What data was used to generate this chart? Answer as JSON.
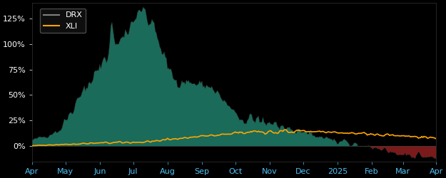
{
  "background_color": "#000000",
  "plot_bg_color": "#000000",
  "drx_fill_color_pos": "#1a6b5a",
  "drx_fill_color_neg": "#7a1a1a",
  "drx_line_color": "#3a3a3a",
  "xli_line_color": "#FFA500",
  "legend_labels": [
    "DRX",
    "XLI"
  ],
  "legend_line_colors": [
    "#808080",
    "#FFA500"
  ],
  "tick_label_color": "#ffffff",
  "x_tick_label_color": "#4fc3f7",
  "yticks": [
    0,
    25,
    50,
    75,
    100,
    125
  ],
  "ytick_labels": [
    "0%",
    "25%",
    "50%",
    "75%",
    "100%",
    "125%"
  ],
  "ylim": [
    -15,
    140
  ],
  "n_points": 365,
  "month_positions": [
    0,
    30,
    61,
    91,
    122,
    153,
    183,
    214,
    244,
    275,
    306,
    334,
    364
  ],
  "month_labels": [
    "Apr",
    "May",
    "Jun",
    "Jul",
    "Aug",
    "Sep",
    "Oct",
    "Nov",
    "Dec",
    "2025",
    "Feb",
    "Mar",
    "Apr"
  ]
}
